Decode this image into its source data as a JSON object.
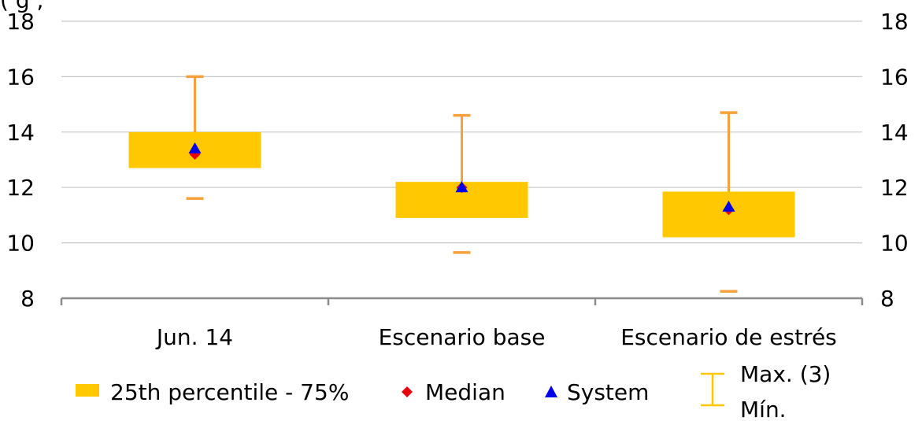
{
  "chart_data": {
    "type": "box",
    "title": "",
    "top_note": "(                                    g                     ,",
    "xlabel": "",
    "ylabel": "",
    "ylim": [
      8,
      18
    ],
    "yticks": [
      8,
      10,
      12,
      14,
      16,
      18
    ],
    "categories": [
      "Jun. 14",
      "Escenario base",
      "Escenario de estrés"
    ],
    "series": [
      {
        "name": "25th percentile - 75%",
        "kind": "range",
        "low": [
          12.7,
          10.9,
          10.2
        ],
        "high": [
          14.0,
          12.2,
          11.85
        ]
      },
      {
        "name": "Median",
        "kind": "marker",
        "values": [
          13.2,
          12.0,
          11.2
        ]
      },
      {
        "name": "System",
        "kind": "marker",
        "values": [
          13.4,
          12.0,
          11.3
        ]
      },
      {
        "name": "Max.",
        "kind": "whisker-max",
        "values": [
          16.0,
          14.6,
          14.7
        ]
      },
      {
        "name": "Mín.",
        "kind": "whisker-min",
        "values": [
          11.6,
          9.65,
          8.25
        ]
      }
    ],
    "legend": {
      "placement": "bottom",
      "items": [
        {
          "label": "25th percentile - 75%",
          "symbol": "box"
        },
        {
          "label": "Median",
          "symbol": "diamond"
        },
        {
          "label": "System",
          "symbol": "triangle"
        },
        {
          "label": "Max. (3)",
          "symbol": "whisker-top"
        },
        {
          "label": "Mín.",
          "symbol": "whisker-bottom"
        }
      ]
    },
    "colors": {
      "box": "#FFC800",
      "whisker": "#F7A13C",
      "legend_whisker": "#FFC800",
      "median": "#E8000B",
      "system": "#0000E6",
      "grid": "#C8C8C8",
      "axis": "#8C8C8C"
    },
    "grid": true
  }
}
